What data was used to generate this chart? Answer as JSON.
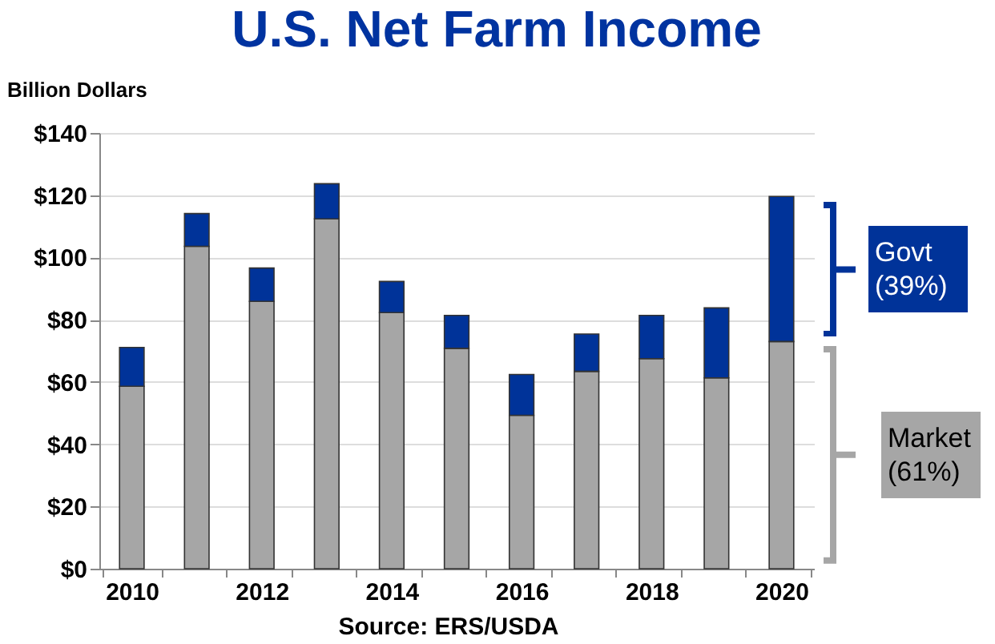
{
  "chart_data": {
    "type": "bar",
    "title": "U.S. Net Farm Income",
    "ylabel": "Billion Dollars",
    "categories": [
      "2010",
      null,
      "2012",
      null,
      "2014",
      null,
      "2016",
      null,
      "2018",
      null,
      "2020"
    ],
    "stacked": true,
    "series": [
      {
        "name": "Market (61%)",
        "color": "#a6a6a6",
        "values": [
          58.6,
          103.6,
          85.9,
          112.4,
          82.3,
          70.8,
          49.3,
          63.4,
          67.5,
          61.3,
          73.0
        ]
      },
      {
        "name": "Govt (39%)",
        "color": "#003399",
        "values": [
          12.5,
          10.5,
          10.7,
          11.3,
          10.0,
          10.6,
          13.1,
          12.0,
          13.9,
          22.5,
          46.6
        ]
      }
    ],
    "ylim": [
      0,
      140
    ],
    "yticks": [
      {
        "value": 0,
        "label": "$0"
      },
      {
        "value": 20,
        "label": "$20"
      },
      {
        "value": 40,
        "label": "$40"
      },
      {
        "value": 60,
        "label": "$60"
      },
      {
        "value": 80,
        "label": "$80"
      },
      {
        "value": 100,
        "label": "$100"
      },
      {
        "value": 120,
        "label": "$120"
      },
      {
        "value": 140,
        "label": "$140"
      }
    ],
    "grid": "y",
    "legend": "right",
    "annotations": [
      "Source:  ERS/USDA"
    ]
  }
}
